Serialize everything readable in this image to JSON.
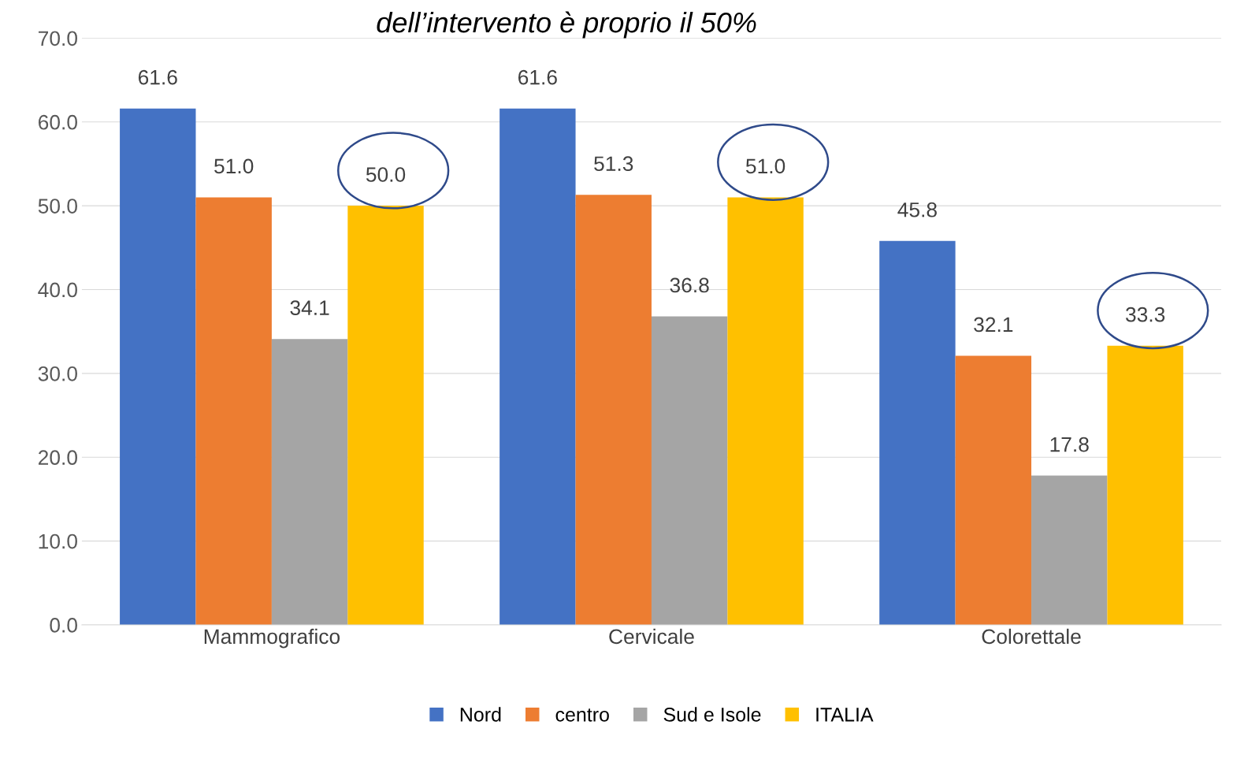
{
  "chart_data": {
    "type": "bar",
    "title": "dell’intervento è proprio il 50%",
    "categories": [
      "Mammografico",
      "Cervicale",
      "Colorettale"
    ],
    "series": [
      {
        "name": "Nord",
        "color": "#4472c4",
        "values": [
          61.6,
          61.6,
          45.8
        ],
        "value_labels": [
          "61.6",
          "61.6",
          "45.8"
        ]
      },
      {
        "name": "centro",
        "color": "#ed7d31",
        "values": [
          51.0,
          51.3,
          32.1
        ],
        "value_labels": [
          "51.0",
          "51.3",
          "32.1"
        ]
      },
      {
        "name": "Sud e Isole",
        "color": "#a5a5a5",
        "values": [
          34.1,
          36.8,
          17.8
        ],
        "value_labels": [
          "34.1",
          "36.8",
          "17.8"
        ]
      },
      {
        "name": "ITALIA",
        "color": "#ffc000",
        "values": [
          50.0,
          51.0,
          33.3
        ],
        "value_labels": [
          "50.0",
          "51.0",
          "33.3"
        ]
      }
    ],
    "ylim": [
      0,
      70
    ],
    "yticks": [
      {
        "value": 0,
        "label": "0.0"
      },
      {
        "value": 10,
        "label": "10.0"
      },
      {
        "value": 20,
        "label": "20.0"
      },
      {
        "value": 30,
        "label": "30.0"
      },
      {
        "value": 40,
        "label": "40.0"
      },
      {
        "value": 50,
        "label": "50.0"
      },
      {
        "value": 60,
        "label": "60.0"
      },
      {
        "value": 70,
        "label": "70.0"
      }
    ],
    "grid": "y",
    "legend": "bottom"
  }
}
